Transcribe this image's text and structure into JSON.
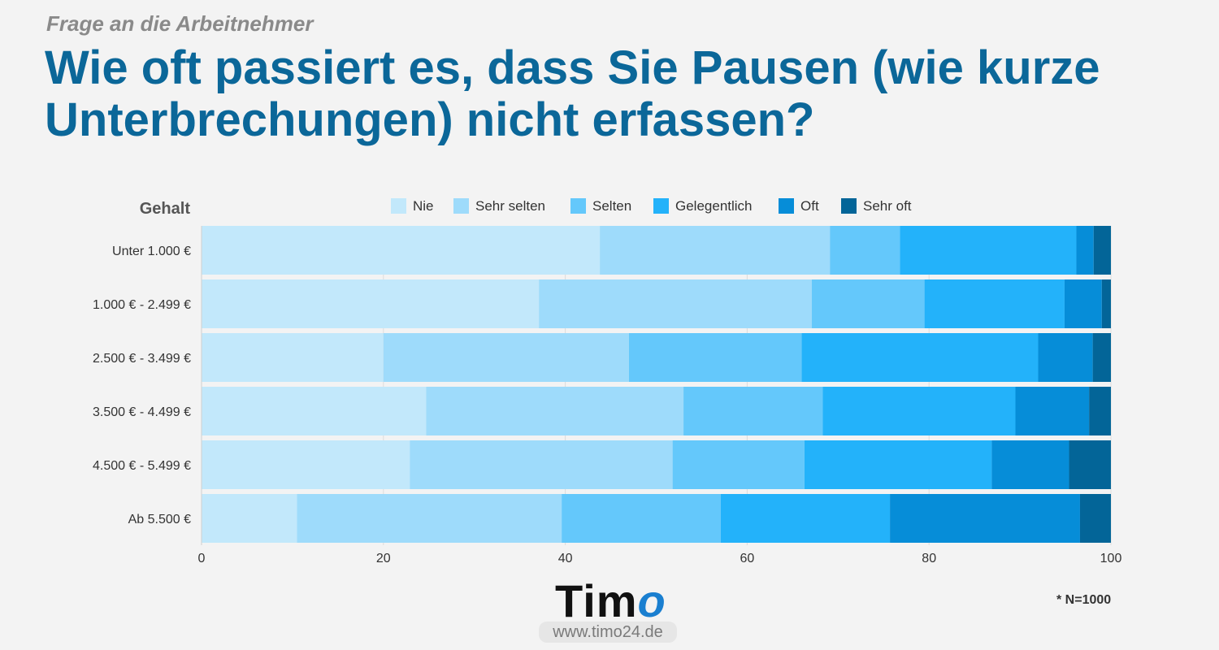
{
  "header": {
    "subtitle": "Frage an die Arbeitnehmer",
    "title": "Wie oft passiert es, dass Sie Pausen (wie kurze Unterbrechungen) nicht erfassen?"
  },
  "chart_data": {
    "type": "bar",
    "orientation": "horizontal",
    "stacked": true,
    "y_axis_title": "Gehalt",
    "categories": [
      "Unter 1.000 €",
      "1.000 € - 2.499 €",
      "2.500 € - 3.499 €",
      "3.500 € - 4.499 €",
      "4.500 € - 5.499 €",
      "Ab 5.500 €"
    ],
    "series": [
      {
        "name": "Nie",
        "color": "#c2e8fb",
        "values": [
          43.8,
          37.1,
          20.0,
          24.7,
          22.9,
          10.5
        ]
      },
      {
        "name": "Sehr selten",
        "color": "#9edbfb",
        "values": [
          25.3,
          30.0,
          27.0,
          28.3,
          28.9,
          29.1
        ]
      },
      {
        "name": "Selten",
        "color": "#64c8fb",
        "values": [
          7.7,
          12.4,
          19.0,
          15.3,
          14.5,
          17.5
        ]
      },
      {
        "name": "Gelegentlich",
        "color": "#23b2fa",
        "values": [
          19.4,
          15.4,
          26.0,
          21.2,
          20.6,
          18.6
        ]
      },
      {
        "name": "Oft",
        "color": "#068dd8",
        "values": [
          1.9,
          4.1,
          6.0,
          8.1,
          8.5,
          20.9
        ]
      },
      {
        "name": "Sehr oft",
        "color": "#036598",
        "values": [
          1.9,
          1.0,
          2.0,
          2.4,
          4.6,
          3.4
        ]
      }
    ],
    "xlim": [
      0,
      100
    ],
    "xticks": [
      0,
      20,
      40,
      60,
      80,
      100
    ],
    "legend_position": "top",
    "grid": true
  },
  "footer": {
    "logo_main": "Tim",
    "logo_accent": "o",
    "url": "www.timo24.de",
    "note": "* N=1000"
  }
}
